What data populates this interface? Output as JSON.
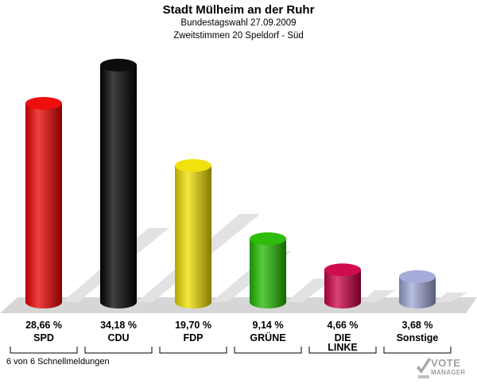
{
  "header": {
    "title": "Stadt Mülheim an der Ruhr",
    "subtitle": "Bundestagswahl 27.09.2009",
    "subtitle2": "Zweitstimmen 20 Speldorf - Süd"
  },
  "footer": {
    "status": "6 von 6 Schnellmeldungen"
  },
  "logo": {
    "line1": "VOTE",
    "line2": "MANAGER"
  },
  "chart_data": {
    "type": "bar",
    "title": "Stadt Mülheim an der Ruhr",
    "subtitle": "Bundestagswahl 27.09.2009 — Zweitstimmen 20 Speldorf - Süd",
    "xlabel": "",
    "ylabel": "",
    "ylim": [
      0,
      36
    ],
    "grid": false,
    "legend": "none",
    "categories": [
      {
        "line1": "SPD",
        "line2": ""
      },
      {
        "line1": "CDU",
        "line2": ""
      },
      {
        "line1": "FDP",
        "line2": ""
      },
      {
        "line1": "GRÜNE",
        "line2": ""
      },
      {
        "line1": "DIE",
        "line2": "LINKE"
      },
      {
        "line1": "Sonstige",
        "line2": ""
      }
    ],
    "values": [
      28.66,
      34.18,
      19.7,
      9.14,
      4.66,
      3.68
    ],
    "value_labels": [
      "28,66 %",
      "34,18 %",
      "19,70 %",
      "9,14 %",
      "4,66 %",
      "3,68 %"
    ],
    "colors": [
      "#ee0000",
      "#000000",
      "#f0e000",
      "#22bb00",
      "#cc0044",
      "#a0a8d8"
    ]
  }
}
